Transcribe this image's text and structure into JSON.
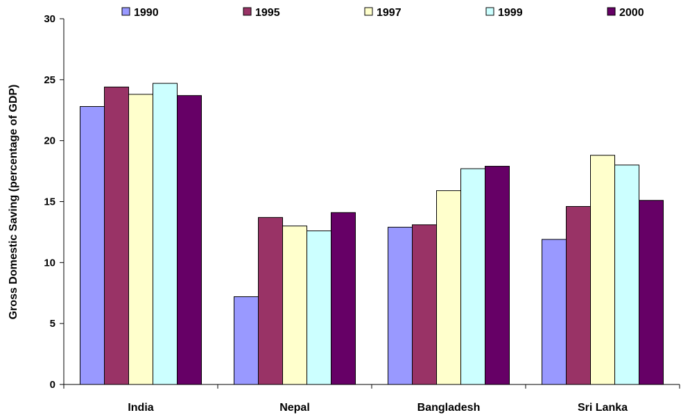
{
  "chart_data": {
    "type": "bar",
    "title": "",
    "xlabel": "",
    "ylabel": "Gross Domestic Saving (percentage of GDP)",
    "ylim": [
      0,
      30
    ],
    "yticks": [
      "0",
      "5",
      "10",
      "15",
      "20",
      "25",
      "30"
    ],
    "categories": [
      "India",
      "Nepal",
      "Bangladesh",
      "Sri Lanka"
    ],
    "legend_position": "top",
    "grid": false,
    "series": [
      {
        "name": "1990",
        "color": "#9999ff",
        "values": [
          22.8,
          7.2,
          12.9,
          11.9
        ]
      },
      {
        "name": "1995",
        "color": "#993366",
        "values": [
          24.4,
          13.7,
          13.1,
          14.6
        ]
      },
      {
        "name": "1997",
        "color": "#ffffcc",
        "values": [
          23.8,
          13.0,
          15.9,
          18.8
        ]
      },
      {
        "name": "1999",
        "color": "#ccffff",
        "values": [
          24.7,
          12.6,
          17.7,
          18.0
        ]
      },
      {
        "name": "2000",
        "color": "#660066",
        "values": [
          23.7,
          14.1,
          17.9,
          15.1
        ]
      }
    ]
  }
}
